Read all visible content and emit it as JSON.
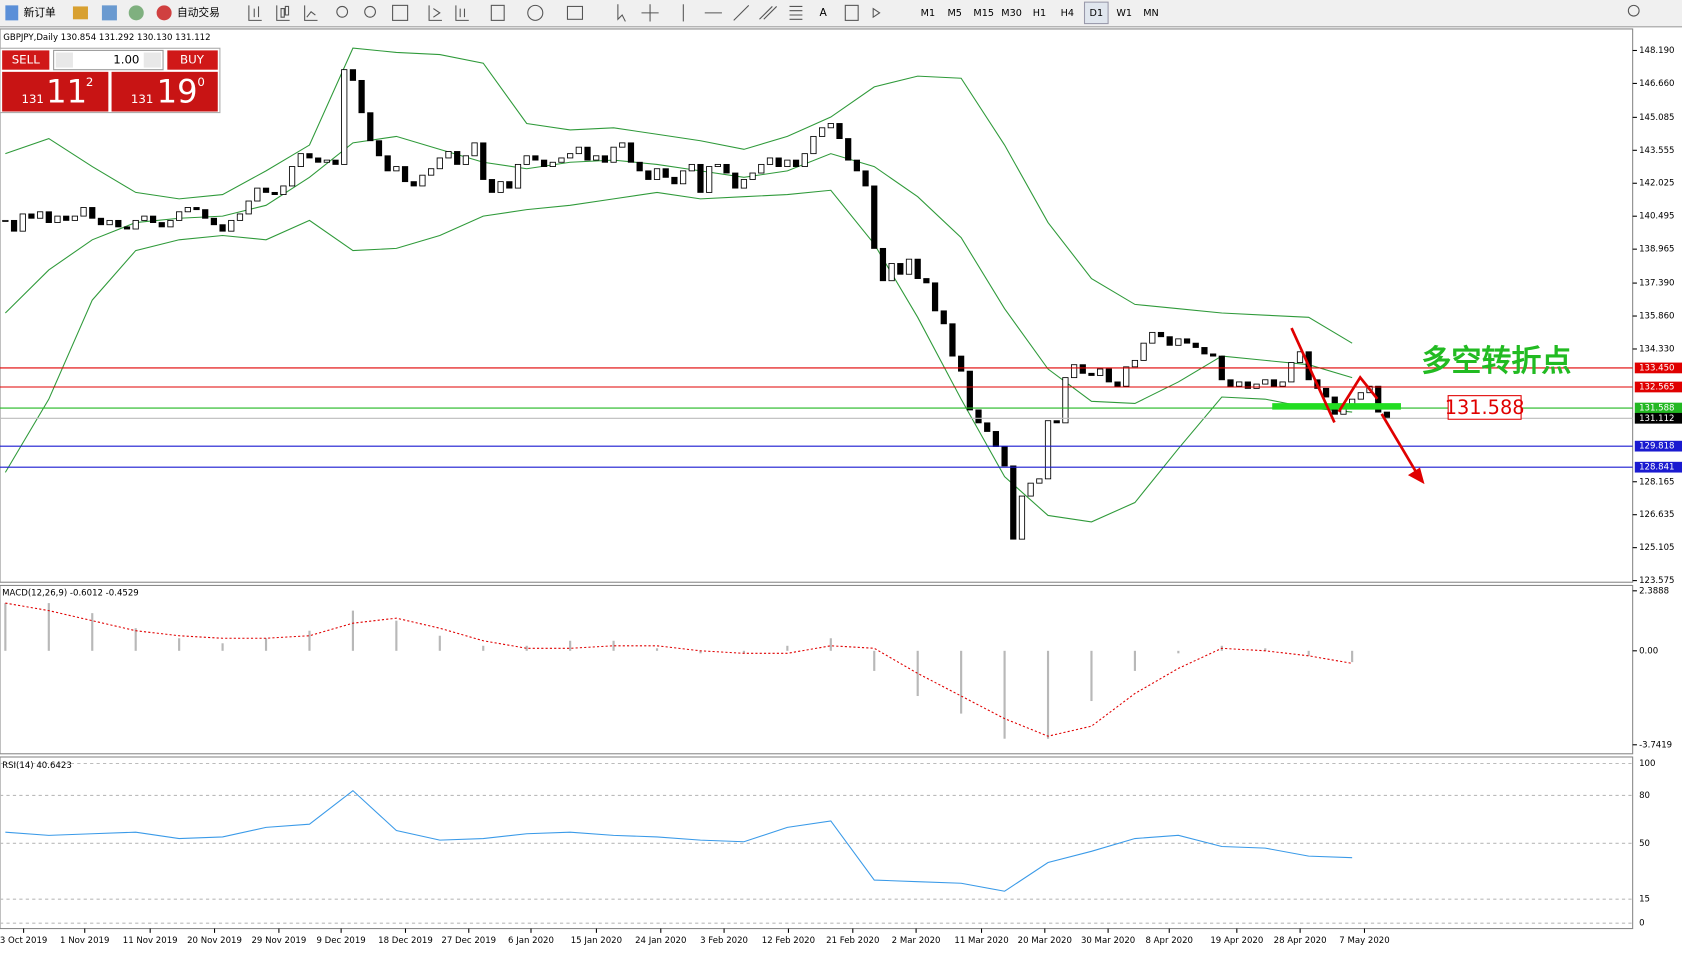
{
  "toolbar": {
    "new_order": "新订单",
    "auto_trading": "自动交易",
    "timeframes": [
      "M1",
      "M5",
      "M15",
      "M30",
      "H1",
      "H4",
      "D1",
      "W1",
      "MN"
    ],
    "active_timeframe": "D1"
  },
  "trade_panel": {
    "sell": "SELL",
    "buy": "BUY",
    "lots": "1.00",
    "bid_big": "131",
    "bid_pips": "11",
    "bid_frac": "2",
    "ask_big": "131",
    "ask_pips": "19",
    "ask_frac": "0"
  },
  "chart_header": "GBPJPY,Daily  130.854 131.292 130.130 131.112",
  "price": {
    "closes": [
      140.3,
      139.8,
      140.6,
      140.4,
      140.7,
      140.2,
      140.5,
      140.3,
      140.5,
      140.9,
      140.4,
      140.1,
      140.3,
      140.0,
      139.9,
      140.3,
      140.5,
      140.2,
      140.0,
      140.3,
      140.7,
      140.9,
      140.8,
      140.4,
      140.1,
      139.8,
      140.3,
      140.6,
      141.2,
      141.8,
      141.6,
      141.5,
      141.9,
      142.8,
      143.4,
      143.2,
      143.0,
      143.1,
      142.9,
      147.3,
      146.8,
      145.3,
      144.0,
      143.3,
      142.6,
      142.8,
      142.1,
      141.9,
      142.4,
      142.7,
      143.2,
      143.5,
      142.9,
      143.3,
      143.9,
      142.2,
      141.6,
      142.1,
      141.8,
      142.9,
      143.3,
      143.1,
      142.8,
      143.0,
      143.2,
      143.4,
      143.7,
      143.1,
      143.3,
      143.0,
      143.7,
      143.9,
      143.0,
      142.6,
      142.2,
      142.7,
      142.3,
      142.0,
      142.6,
      142.9,
      141.6,
      142.8,
      142.9,
      142.5,
      141.8,
      142.2,
      142.5,
      142.9,
      143.2,
      142.8,
      143.1,
      142.8,
      143.4,
      144.2,
      144.6,
      144.8,
      144.1,
      143.1,
      142.6,
      141.9,
      139.0,
      137.5,
      138.3,
      137.8,
      138.5,
      137.6,
      137.4,
      136.1,
      135.5,
      134.0,
      133.3,
      131.5,
      130.9,
      130.5,
      129.8,
      128.9,
      125.5,
      127.5,
      128.1,
      128.3,
      131.0,
      130.9,
      133.0,
      133.6,
      133.2,
      133.1,
      133.4,
      132.8,
      132.6,
      133.5,
      133.8,
      134.6,
      135.1,
      134.9,
      134.5,
      134.8,
      134.6,
      134.4,
      134.1,
      134.0,
      132.9,
      132.6,
      132.8,
      132.5,
      132.7,
      132.9,
      132.6,
      132.8,
      133.7,
      134.2,
      132.9,
      132.5,
      132.1,
      131.3,
      131.7,
      132.0,
      132.3,
      132.6,
      131.4,
      131.112
    ],
    "bollinger": {
      "upper": [
        143.4,
        144.1,
        142.8,
        141.6,
        141.3,
        141.5,
        142.6,
        143.8,
        148.3,
        148.1,
        148.0,
        147.6,
        144.8,
        144.5,
        144.6,
        144.3,
        144.0,
        143.6,
        144.2,
        145.1,
        146.5,
        147.0,
        146.9,
        143.8,
        140.2,
        137.6,
        136.4,
        136.2,
        136.0,
        135.9,
        135.8,
        134.6
      ],
      "middle": [
        136.0,
        138.0,
        139.4,
        140.2,
        140.4,
        140.5,
        141.0,
        142.3,
        143.9,
        144.2,
        143.6,
        143.0,
        142.7,
        143.0,
        143.1,
        142.9,
        142.6,
        142.3,
        142.6,
        143.4,
        142.8,
        141.4,
        139.5,
        136.2,
        133.4,
        131.9,
        131.8,
        132.8,
        134.0,
        133.8,
        133.6,
        133.0
      ],
      "lower": [
        128.6,
        132.0,
        136.6,
        138.9,
        139.4,
        139.6,
        139.4,
        140.3,
        138.9,
        139.0,
        139.6,
        140.5,
        140.8,
        141.0,
        141.3,
        141.6,
        141.3,
        141.4,
        141.5,
        141.7,
        139.2,
        135.8,
        132.0,
        128.4,
        126.6,
        126.3,
        127.2,
        129.7,
        132.1,
        132.0,
        131.6,
        131.4
      ],
      "color": "#2f9a3a"
    },
    "ylim": [
      123.5,
      149.14
    ],
    "yticks": [
      {
        "value": 148.19,
        "label": "148.190"
      },
      {
        "value": 146.66,
        "label": "146.660"
      },
      {
        "value": 145.085,
        "label": "145.085"
      },
      {
        "value": 143.555,
        "label": "143.555"
      },
      {
        "value": 142.025,
        "label": "142.025"
      },
      {
        "value": 140.495,
        "label": "140.495"
      },
      {
        "value": 138.965,
        "label": "138.965"
      },
      {
        "value": 137.39,
        "label": "137.390"
      },
      {
        "value": 135.86,
        "label": "135.860"
      },
      {
        "value": 134.33,
        "label": "134.330"
      },
      {
        "value": 128.165,
        "label": "128.165"
      },
      {
        "value": 126.635,
        "label": "126.635"
      },
      {
        "value": 125.105,
        "label": "125.105"
      },
      {
        "value": 123.575,
        "label": "123.575"
      }
    ],
    "levels": [
      {
        "value": 133.45,
        "label": "133.450",
        "color": "#e00000"
      },
      {
        "value": 132.565,
        "label": "132.565",
        "color": "#e00000"
      },
      {
        "value": 131.588,
        "label": "131.588",
        "color": "#22b822"
      },
      {
        "value": 129.818,
        "label": "129.818",
        "color": "#1a1ad0"
      },
      {
        "value": 128.841,
        "label": "128.841",
        "color": "#1a1ad0"
      }
    ],
    "last_price": {
      "value": 131.112,
      "label": "131.112"
    }
  },
  "annotation": {
    "text": "多空转折点",
    "price_label": "131.588"
  },
  "macd": {
    "label": "MACD(12,26,9) -0.6012 -0.4529",
    "main": [
      1.9,
      1.9,
      1.5,
      0.9,
      0.5,
      0.3,
      0.5,
      0.8,
      1.6,
      1.2,
      0.6,
      0.2,
      0.2,
      0.4,
      0.4,
      0.1,
      -0.1,
      -0.1,
      0.2,
      0.5,
      -0.8,
      -1.8,
      -2.5,
      -3.5,
      -3.5,
      -2.0,
      -0.8,
      -0.1,
      0.2,
      0.1,
      -0.2,
      -0.45
    ],
    "signal": [
      1.9,
      1.6,
      1.2,
      0.8,
      0.6,
      0.5,
      0.5,
      0.6,
      1.1,
      1.3,
      0.9,
      0.4,
      0.1,
      0.1,
      0.2,
      0.2,
      0.0,
      -0.1,
      -0.1,
      0.2,
      0.1,
      -0.9,
      -1.8,
      -2.7,
      -3.4,
      -3.0,
      -1.7,
      -0.7,
      0.1,
      0.0,
      -0.2,
      -0.5
    ],
    "ylim": [
      -4.1,
      2.56
    ],
    "yticks": [
      2.3888,
      {
        "value": 0,
        "label": "0.00"
      },
      -3.7419
    ]
  },
  "rsi": {
    "label": "RSI(14) 40.6423",
    "values": [
      57,
      55,
      56,
      57,
      53,
      54,
      60,
      62,
      83,
      58,
      52,
      53,
      56,
      57,
      55,
      54,
      52,
      51,
      60,
      64,
      27,
      26,
      25,
      20,
      38,
      45,
      53,
      55,
      48,
      47,
      42,
      41
    ],
    "ylim": [
      -2.7,
      103.4
    ],
    "yticks": [
      100,
      80,
      50,
      15,
      0
    ]
  },
  "dates": [
    "3 Oct 2019",
    "1 Nov 2019",
    "11 Nov 2019",
    "20 Nov 2019",
    "29 Nov 2019",
    "9 Dec 2019",
    "18 Dec 2019",
    "27 Dec 2019",
    "6 Jan 2020",
    "15 Jan 2020",
    "24 Jan 2020",
    "3 Feb 2020",
    "12 Feb 2020",
    "21 Feb 2020",
    "2 Mar 2020",
    "11 Mar 2020",
    "20 Mar 2020",
    "30 Mar 2020",
    "8 Apr 2020",
    "19 Apr 2020",
    "28 Apr 2020",
    "7 May 2020"
  ]
}
